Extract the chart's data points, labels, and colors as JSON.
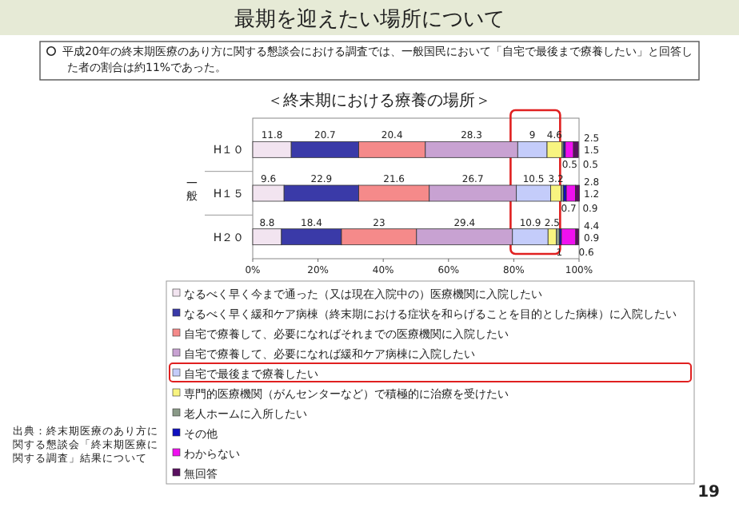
{
  "chart_data": {
    "type": "bar",
    "orientation": "horizontal",
    "stacked": true,
    "title": "最期を迎えたい場所について",
    "subtitle": "平成20年の終末期医療のあり方に関する懇談会における調査では、一般国民において「自宅で最後まで療養したい」と回答した者の割合は約11%であった。",
    "ylabel": "一般",
    "categories": [
      "H１０",
      "H１５",
      "H２０"
    ],
    "series": [
      {
        "name": "なるべく早く今まで通った（又は現在入院中の）医療機関に入院したい",
        "color": "#f2e4f0",
        "values": [
          11.8,
          9.6,
          8.8
        ]
      },
      {
        "name": "なるべく早く緩和ケア病棟（終末期における症状を和らげることを目的とした病棟）に入院したい",
        "color": "#3a3aa8",
        "values": [
          20.7,
          22.9,
          18.4
        ]
      },
      {
        "name": "自宅で療養して、必要になればそれまでの医療機関に入院したい",
        "color": "#f58a8a",
        "values": [
          20.4,
          21.6,
          23.0
        ]
      },
      {
        "name": "自宅で療養して、必要になれば緩和ケア病棟に入院したい",
        "color": "#c8a2d2",
        "values": [
          28.3,
          26.7,
          29.4
        ]
      },
      {
        "name": "自宅で最後まで療養したい",
        "color": "#c4ccfa",
        "values": [
          9.0,
          10.5,
          10.9
        ]
      },
      {
        "name": "専門的医療機関（がんセンターなど）で積極的に治療を受けたい",
        "color": "#f8f480",
        "values": [
          4.6,
          3.2,
          2.5
        ]
      },
      {
        "name": "老人ホームに入所したい",
        "color": "#8a9a88",
        "values": [
          0.5,
          0.7,
          1.0
        ]
      },
      {
        "name": "その他",
        "color": "#1010c0",
        "values": [
          0.5,
          0.9,
          0.6
        ]
      },
      {
        "name": "わからない",
        "color": "#f010f0",
        "values": [
          2.5,
          2.8,
          4.4
        ]
      },
      {
        "name": "無回答",
        "color": "#5a1060",
        "values": [
          1.5,
          1.2,
          0.9
        ]
      }
    ],
    "xlim": [
      0,
      100
    ],
    "xticks": [
      {
        "value": 0,
        "label": "0%"
      },
      {
        "value": 20,
        "label": "20%"
      },
      {
        "value": 40,
        "label": "40%"
      },
      {
        "value": 60,
        "label": "60%"
      },
      {
        "value": 80,
        "label": "80%"
      },
      {
        "value": 100,
        "label": "100%"
      }
    ],
    "data_labels": true,
    "legend": "bottom",
    "annotations": [
      "＜終末期における療養の場所＞",
      "出典：終末期医療のあり方に関する懇談会「終末期医療に関する調査」結果について",
      "19"
    ]
  }
}
